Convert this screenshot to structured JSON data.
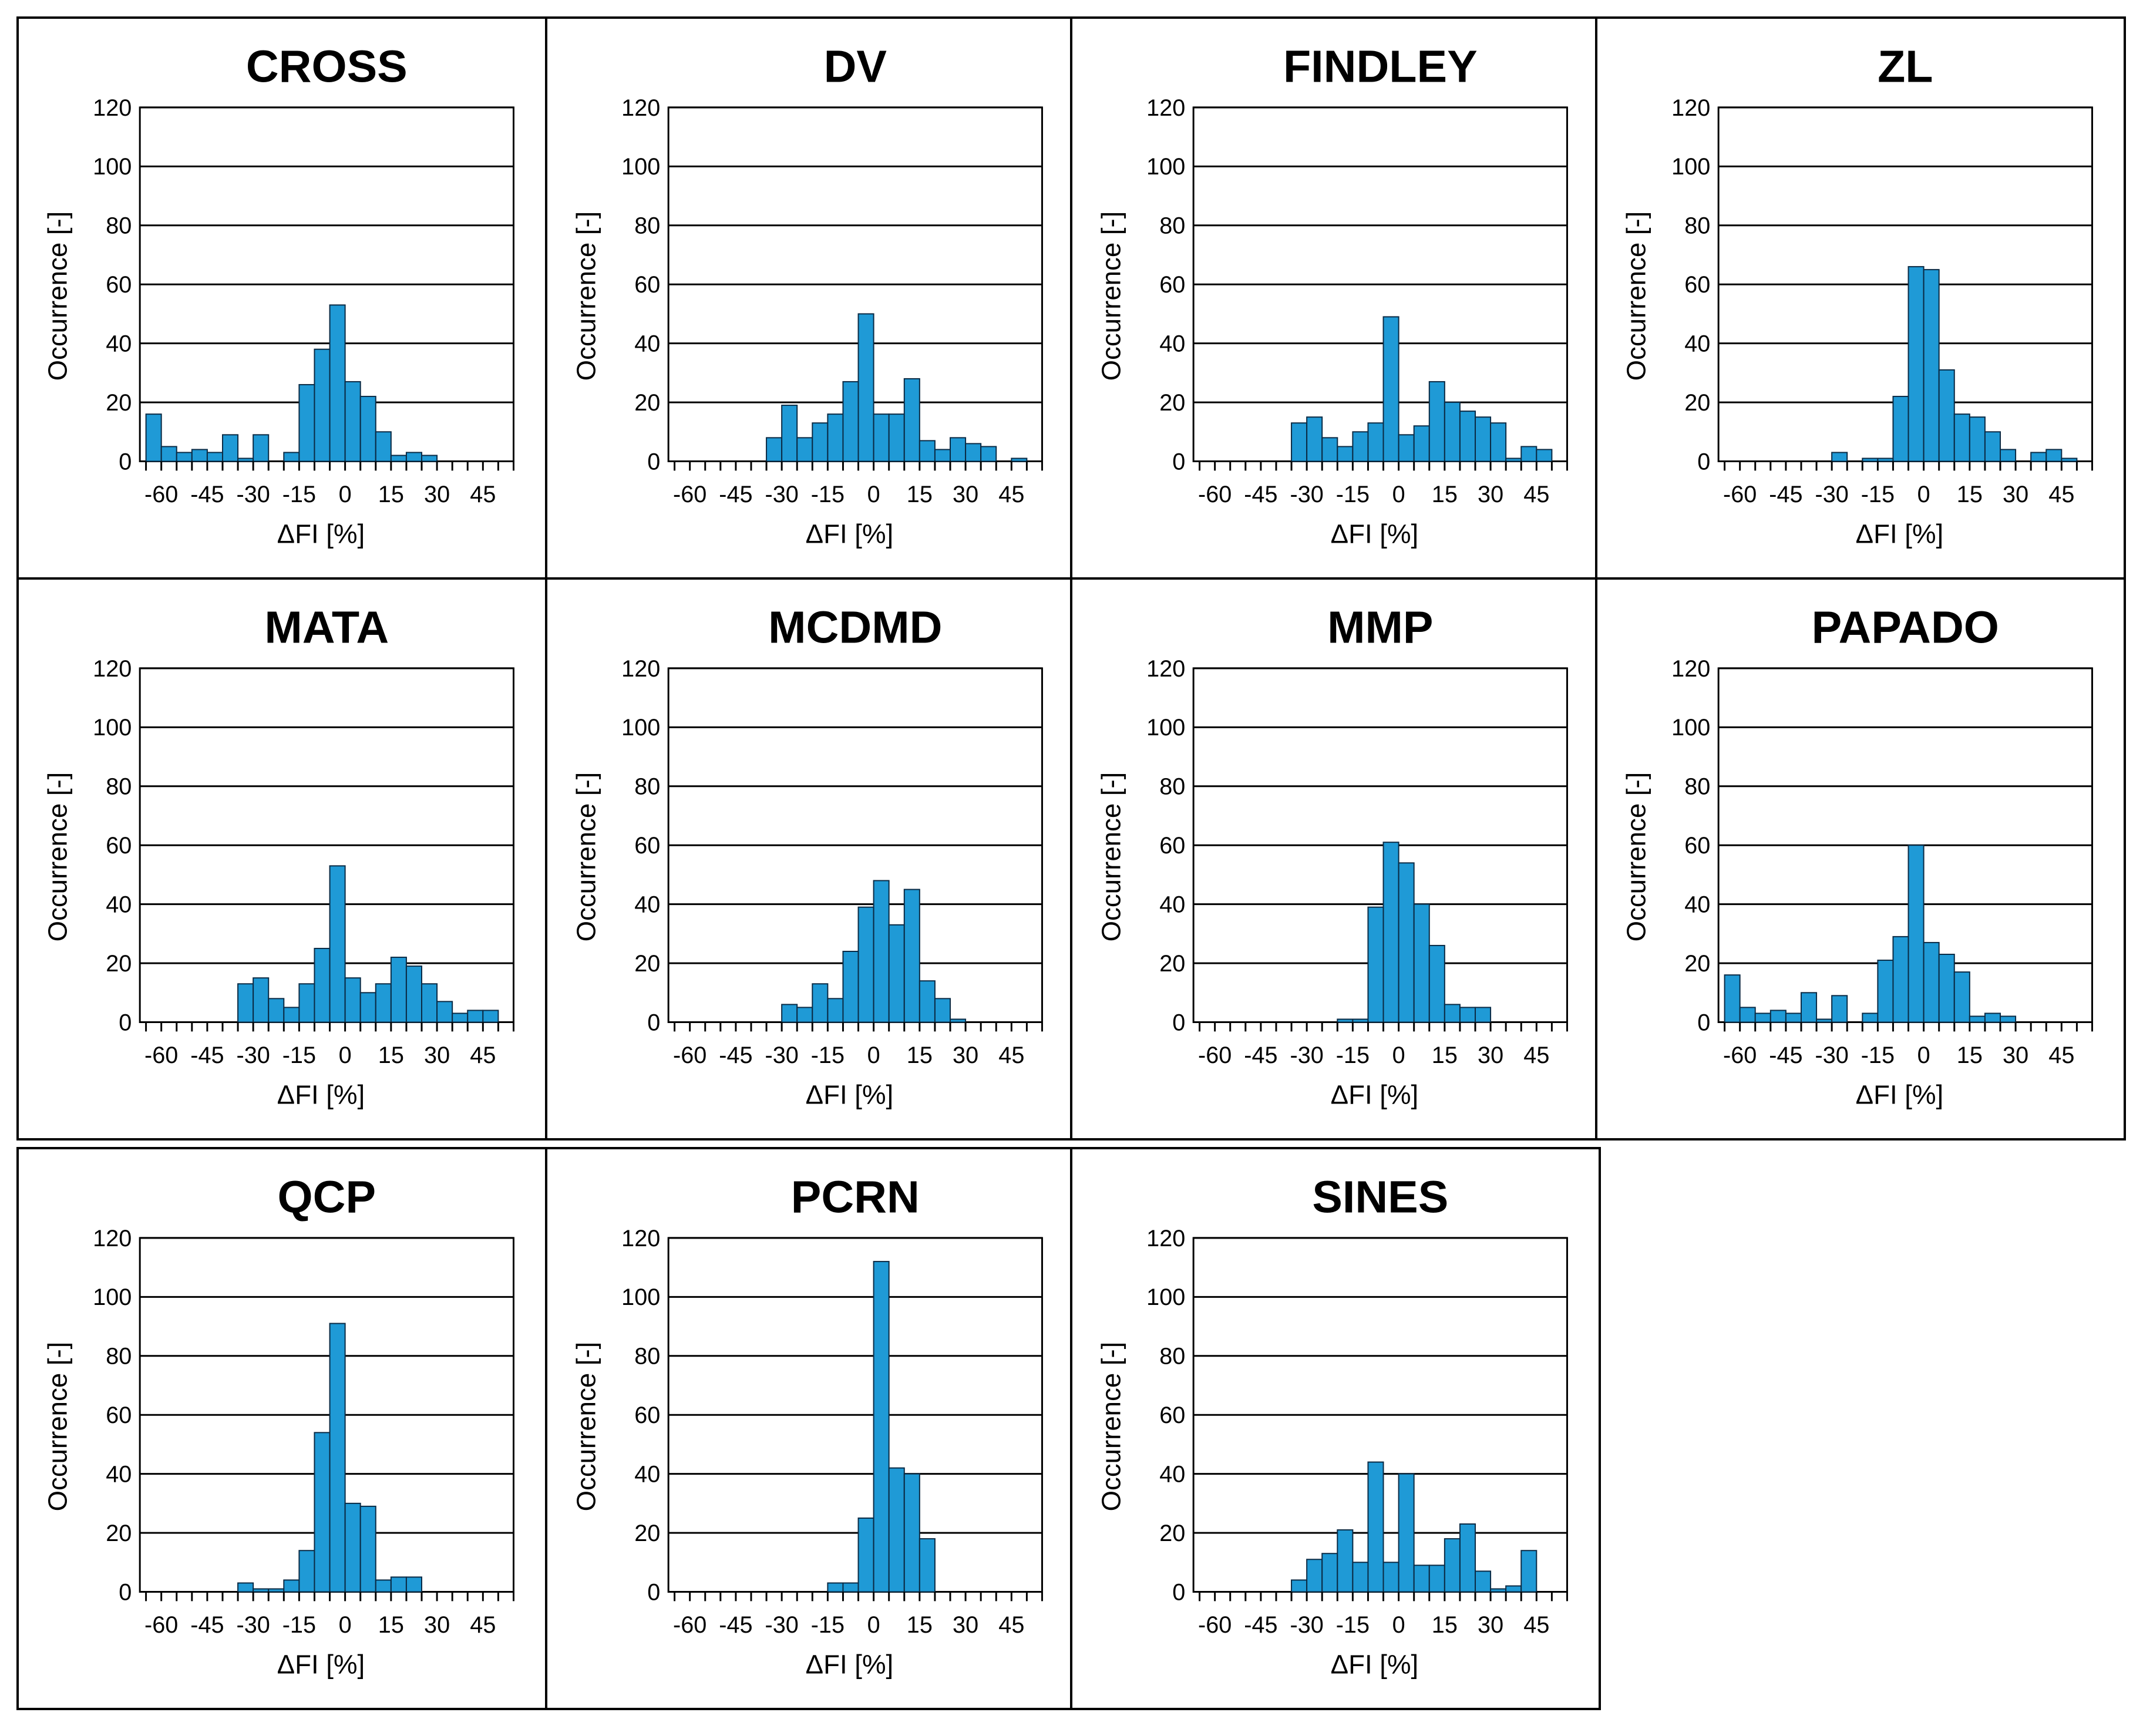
{
  "figure": {
    "bar_color": "#1f9ad6",
    "bar_edge": "#0a2a44",
    "frame_color": "#000000"
  },
  "chart_data": [
    {
      "type": "bar",
      "title": "CROSS",
      "xlabel": "ΔFI [%]",
      "ylabel": "Occurrence [-]",
      "ylim": [
        0,
        120
      ],
      "yticks": [
        0,
        20,
        40,
        60,
        80,
        100,
        120
      ],
      "xticks": [
        -60,
        -45,
        -30,
        -15,
        0,
        15,
        30,
        45
      ],
      "bin_width": 5,
      "bin_starts": [
        -65,
        -60,
        -55,
        -50,
        -45,
        -40,
        -35,
        -30,
        -25,
        -20,
        -15,
        -10,
        -5,
        0,
        5,
        10,
        15,
        20,
        25,
        30,
        35,
        40,
        45,
        50
      ],
      "values": [
        16,
        5,
        3,
        4,
        3,
        9,
        1,
        9,
        0,
        3,
        26,
        38,
        53,
        27,
        22,
        10,
        2,
        3,
        2,
        0,
        0,
        0,
        0,
        0
      ]
    },
    {
      "type": "bar",
      "title": "DV",
      "xlabel": "ΔFI [%]",
      "ylabel": "Occurrence [-]",
      "ylim": [
        0,
        120
      ],
      "yticks": [
        0,
        20,
        40,
        60,
        80,
        100,
        120
      ],
      "xticks": [
        -60,
        -45,
        -30,
        -15,
        0,
        15,
        30,
        45
      ],
      "bin_width": 5,
      "bin_starts": [
        -65,
        -60,
        -55,
        -50,
        -45,
        -40,
        -35,
        -30,
        -25,
        -20,
        -15,
        -10,
        -5,
        0,
        5,
        10,
        15,
        20,
        25,
        30,
        35,
        40,
        45,
        50
      ],
      "values": [
        0,
        0,
        0,
        0,
        0,
        0,
        8,
        19,
        8,
        13,
        16,
        27,
        50,
        16,
        16,
        28,
        7,
        4,
        8,
        6,
        5,
        0,
        1,
        0
      ]
    },
    {
      "type": "bar",
      "title": "FINDLEY",
      "xlabel": "ΔFI [%]",
      "ylabel": "Occurrence [-]",
      "ylim": [
        0,
        120
      ],
      "yticks": [
        0,
        20,
        40,
        60,
        80,
        100,
        120
      ],
      "xticks": [
        -60,
        -45,
        -30,
        -15,
        0,
        15,
        30,
        45
      ],
      "bin_width": 5,
      "bin_starts": [
        -65,
        -60,
        -55,
        -50,
        -45,
        -40,
        -35,
        -30,
        -25,
        -20,
        -15,
        -10,
        -5,
        0,
        5,
        10,
        15,
        20,
        25,
        30,
        35,
        40,
        45,
        50
      ],
      "values": [
        0,
        0,
        0,
        0,
        0,
        0,
        13,
        15,
        8,
        5,
        10,
        13,
        49,
        9,
        12,
        27,
        20,
        17,
        15,
        13,
        1,
        5,
        4,
        0
      ]
    },
    {
      "type": "bar",
      "title": "ZL",
      "xlabel": "ΔFI [%]",
      "ylabel": "Occurrence [-]",
      "ylim": [
        0,
        120
      ],
      "yticks": [
        0,
        20,
        40,
        60,
        80,
        100,
        120
      ],
      "xticks": [
        -60,
        -45,
        -30,
        -15,
        0,
        15,
        30,
        45
      ],
      "bin_width": 5,
      "bin_starts": [
        -65,
        -60,
        -55,
        -50,
        -45,
        -40,
        -35,
        -30,
        -25,
        -20,
        -15,
        -10,
        -5,
        0,
        5,
        10,
        15,
        20,
        25,
        30,
        35,
        40,
        45,
        50
      ],
      "values": [
        0,
        0,
        0,
        0,
        0,
        0,
        0,
        3,
        0,
        1,
        1,
        22,
        66,
        65,
        31,
        16,
        15,
        10,
        4,
        0,
        3,
        4,
        1,
        0
      ]
    },
    {
      "type": "bar",
      "title": "MATA",
      "xlabel": "ΔFI [%]",
      "ylabel": "Occurrence [-]",
      "ylim": [
        0,
        120
      ],
      "yticks": [
        0,
        20,
        40,
        60,
        80,
        100,
        120
      ],
      "xticks": [
        -60,
        -45,
        -30,
        -15,
        0,
        15,
        30,
        45
      ],
      "bin_width": 5,
      "bin_starts": [
        -65,
        -60,
        -55,
        -50,
        -45,
        -40,
        -35,
        -30,
        -25,
        -20,
        -15,
        -10,
        -5,
        0,
        5,
        10,
        15,
        20,
        25,
        30,
        35,
        40,
        45,
        50
      ],
      "values": [
        0,
        0,
        0,
        0,
        0,
        0,
        13,
        15,
        8,
        5,
        13,
        25,
        53,
        15,
        10,
        13,
        22,
        19,
        13,
        7,
        3,
        4,
        4,
        0
      ]
    },
    {
      "type": "bar",
      "title": "MCDMD",
      "xlabel": "ΔFI [%]",
      "ylabel": "Occurrence [-]",
      "ylim": [
        0,
        120
      ],
      "yticks": [
        0,
        20,
        40,
        60,
        80,
        100,
        120
      ],
      "xticks": [
        -60,
        -45,
        -30,
        -15,
        0,
        15,
        30,
        45
      ],
      "bin_width": 5,
      "bin_starts": [
        -65,
        -60,
        -55,
        -50,
        -45,
        -40,
        -35,
        -30,
        -25,
        -20,
        -15,
        -10,
        -5,
        0,
        5,
        10,
        15,
        20,
        25,
        30,
        35,
        40,
        45,
        50
      ],
      "values": [
        0,
        0,
        0,
        0,
        0,
        0,
        0,
        6,
        5,
        13,
        8,
        24,
        39,
        48,
        33,
        45,
        14,
        8,
        1,
        0,
        0,
        0,
        0,
        0
      ]
    },
    {
      "type": "bar",
      "title": "MMP",
      "xlabel": "ΔFI [%]",
      "ylabel": "Occurrence [-]",
      "ylim": [
        0,
        120
      ],
      "yticks": [
        0,
        20,
        40,
        60,
        80,
        100,
        120
      ],
      "xticks": [
        -60,
        -45,
        -30,
        -15,
        0,
        15,
        30,
        45
      ],
      "bin_width": 5,
      "bin_starts": [
        -65,
        -60,
        -55,
        -50,
        -45,
        -40,
        -35,
        -30,
        -25,
        -20,
        -15,
        -10,
        -5,
        0,
        5,
        10,
        15,
        20,
        25,
        30,
        35,
        40,
        45,
        50
      ],
      "values": [
        0,
        0,
        0,
        0,
        0,
        0,
        0,
        0,
        0,
        1,
        1,
        39,
        61,
        54,
        40,
        26,
        6,
        5,
        5,
        0,
        0,
        0,
        0,
        0
      ]
    },
    {
      "type": "bar",
      "title": "PAPADO",
      "xlabel": "ΔFI [%]",
      "ylabel": "Occurrence [-]",
      "ylim": [
        0,
        120
      ],
      "yticks": [
        0,
        20,
        40,
        60,
        80,
        100,
        120
      ],
      "xticks": [
        -60,
        -45,
        -30,
        -15,
        0,
        15,
        30,
        45
      ],
      "bin_width": 5,
      "bin_starts": [
        -65,
        -60,
        -55,
        -50,
        -45,
        -40,
        -35,
        -30,
        -25,
        -20,
        -15,
        -10,
        -5,
        0,
        5,
        10,
        15,
        20,
        25,
        30,
        35,
        40,
        45,
        50
      ],
      "values": [
        16,
        5,
        3,
        4,
        3,
        10,
        1,
        9,
        0,
        3,
        21,
        29,
        60,
        27,
        23,
        17,
        2,
        3,
        2,
        0,
        0,
        0,
        0,
        0
      ]
    },
    {
      "type": "bar",
      "title": "QCP",
      "xlabel": "ΔFI [%]",
      "ylabel": "Occurrence [-]",
      "ylim": [
        0,
        120
      ],
      "yticks": [
        0,
        20,
        40,
        60,
        80,
        100,
        120
      ],
      "xticks": [
        -60,
        -45,
        -30,
        -15,
        0,
        15,
        30,
        45
      ],
      "bin_width": 5,
      "bin_starts": [
        -65,
        -60,
        -55,
        -50,
        -45,
        -40,
        -35,
        -30,
        -25,
        -20,
        -15,
        -10,
        -5,
        0,
        5,
        10,
        15,
        20,
        25,
        30,
        35,
        40,
        45,
        50
      ],
      "values": [
        0,
        0,
        0,
        0,
        0,
        0,
        3,
        1,
        1,
        4,
        14,
        54,
        91,
        30,
        29,
        4,
        5,
        5,
        0,
        0,
        0,
        0,
        0,
        0
      ]
    },
    {
      "type": "bar",
      "title": "PCRN",
      "xlabel": "ΔFI [%]",
      "ylabel": "Occurrence [-]",
      "ylim": [
        0,
        120
      ],
      "yticks": [
        0,
        20,
        40,
        60,
        80,
        100,
        120
      ],
      "xticks": [
        -60,
        -45,
        -30,
        -15,
        0,
        15,
        30,
        45
      ],
      "bin_width": 5,
      "bin_starts": [
        -65,
        -60,
        -55,
        -50,
        -45,
        -40,
        -35,
        -30,
        -25,
        -20,
        -15,
        -10,
        -5,
        0,
        5,
        10,
        15,
        20,
        25,
        30,
        35,
        40,
        45,
        50
      ],
      "values": [
        0,
        0,
        0,
        0,
        0,
        0,
        0,
        0,
        0,
        0,
        3,
        3,
        25,
        112,
        42,
        40,
        18,
        0,
        0,
        0,
        0,
        0,
        0,
        0
      ]
    },
    {
      "type": "bar",
      "title": "SINES",
      "xlabel": "ΔFI [%]",
      "ylabel": "Occurrence [-]",
      "ylim": [
        0,
        120
      ],
      "yticks": [
        0,
        20,
        40,
        60,
        80,
        100,
        120
      ],
      "xticks": [
        -60,
        -45,
        -30,
        -15,
        0,
        15,
        30,
        45
      ],
      "bin_width": 5,
      "bin_starts": [
        -65,
        -60,
        -55,
        -50,
        -45,
        -40,
        -35,
        -30,
        -25,
        -20,
        -15,
        -10,
        -5,
        0,
        5,
        10,
        15,
        20,
        25,
        30,
        35,
        40,
        45,
        50
      ],
      "values": [
        0,
        0,
        0,
        0,
        0,
        0,
        4,
        11,
        13,
        21,
        10,
        44,
        10,
        40,
        9,
        9,
        18,
        23,
        7,
        1,
        2,
        14,
        0,
        0
      ]
    }
  ]
}
